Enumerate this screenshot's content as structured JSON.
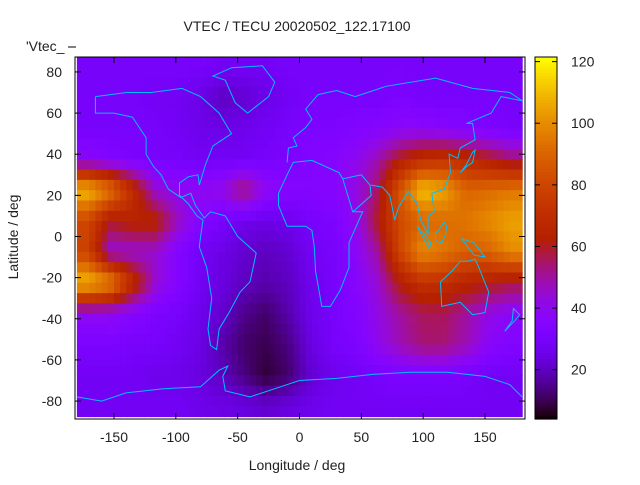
{
  "chart_data": {
    "type": "heatmap",
    "title": "VTEC / TECU 20020502_122.17100",
    "xlabel": "Longitude / deg",
    "ylabel": "Latitude / deg",
    "key_label": "'Vtec_",
    "xlim": [
      -180,
      180
    ],
    "ylim": [
      -87.5,
      87.5
    ],
    "xticks": [
      -150,
      -100,
      -50,
      0,
      50,
      100,
      150
    ],
    "yticks": [
      -80,
      -60,
      -40,
      -20,
      0,
      20,
      40,
      60,
      80
    ],
    "colorbar": {
      "range": [
        4,
        121.5
      ],
      "ticks": [
        20,
        40,
        60,
        80,
        100,
        120
      ]
    },
    "grid_lon": [
      -171,
      -153,
      -135,
      -117,
      -99,
      -81,
      -63,
      -45,
      -27,
      -9,
      9,
      27,
      45,
      63,
      81,
      99,
      117,
      135,
      153,
      171
    ],
    "grid_lat": [
      82.5,
      67.5,
      52.5,
      37.5,
      22.5,
      7.5,
      -7.5,
      -22.5,
      -37.5,
      -52.5,
      -67.5,
      -82.5
    ],
    "values": [
      [
        30,
        30,
        30,
        30,
        30,
        30,
        28,
        28,
        28,
        30,
        30,
        30,
        30,
        30,
        30,
        30,
        30,
        30,
        30,
        30
      ],
      [
        30,
        30,
        30,
        28,
        28,
        25,
        20,
        22,
        25,
        28,
        30,
        30,
        30,
        30,
        32,
        30,
        30,
        30,
        30,
        30
      ],
      [
        30,
        30,
        30,
        30,
        28,
        26,
        25,
        26,
        28,
        30,
        32,
        32,
        34,
        36,
        38,
        38,
        36,
        34,
        32,
        30
      ],
      [
        38,
        34,
        32,
        30,
        30,
        28,
        28,
        28,
        30,
        32,
        34,
        36,
        40,
        48,
        62,
        70,
        72,
        68,
        62,
        55
      ],
      [
        110,
        95,
        70,
        45,
        40,
        40,
        42,
        55,
        40,
        36,
        35,
        36,
        42,
        55,
        85,
        112,
        105,
        90,
        92,
        95
      ],
      [
        80,
        60,
        65,
        65,
        48,
        35,
        30,
        26,
        25,
        26,
        30,
        32,
        40,
        60,
        82,
        90,
        92,
        95,
        100,
        105
      ],
      [
        78,
        45,
        45,
        45,
        35,
        28,
        25,
        22,
        20,
        22,
        28,
        30,
        38,
        50,
        80,
        100,
        95,
        88,
        90,
        100
      ],
      [
        110,
        100,
        70,
        45,
        35,
        28,
        24,
        20,
        18,
        20,
        26,
        30,
        36,
        44,
        62,
        72,
        70,
        65,
        62,
        58
      ],
      [
        40,
        40,
        36,
        32,
        30,
        26,
        22,
        15,
        12,
        18,
        26,
        30,
        34,
        42,
        50,
        56,
        56,
        50,
        42,
        38
      ],
      [
        32,
        32,
        30,
        30,
        28,
        25,
        18,
        12,
        10,
        14,
        24,
        30,
        32,
        40,
        48,
        54,
        54,
        48,
        38,
        34
      ],
      [
        28,
        28,
        28,
        26,
        26,
        24,
        20,
        14,
        8,
        12,
        22,
        26,
        28,
        30,
        32,
        32,
        32,
        30,
        28,
        28
      ],
      [
        28,
        28,
        28,
        28,
        28,
        26,
        25,
        24,
        22,
        24,
        26,
        28,
        28,
        28,
        28,
        28,
        28,
        28,
        28,
        28
      ]
    ]
  },
  "colors": {
    "coastline": "#00bfff",
    "axis": "#000000"
  }
}
